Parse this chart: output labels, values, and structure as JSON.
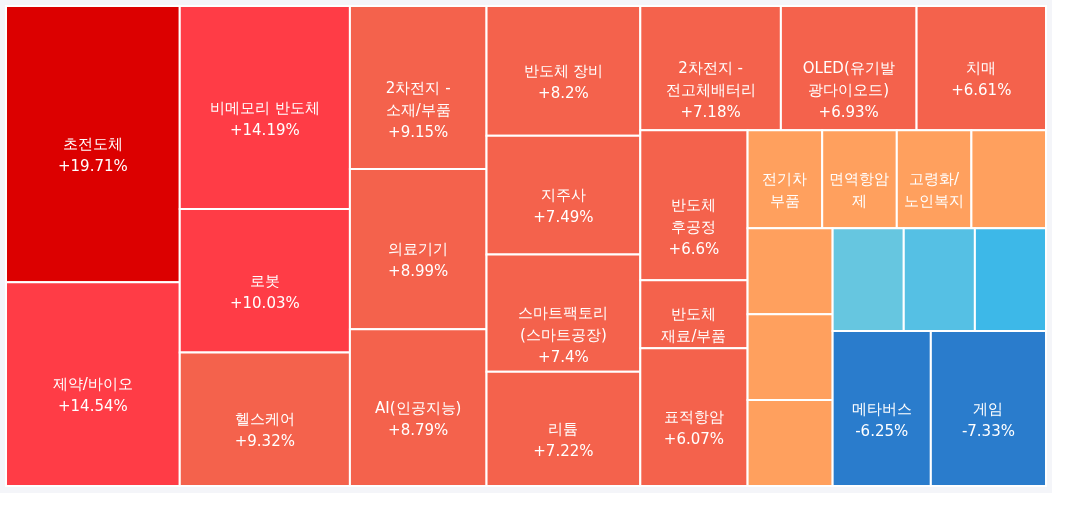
{
  "chart_data": {
    "type": "other",
    "categories": [
      "초전도체",
      "제약/바이오",
      "비메모리 반도체",
      "로봇",
      "헬스케어",
      "2차전지 - 소재/부품",
      "의료기기",
      "AI(인공지능)",
      "반도체 장비",
      "지주사",
      "스마트팩토리 (스마트공장)",
      "리튬",
      "2차전지 - 전고체배터리",
      "OLED(유기발광다이오드)",
      "치매",
      "반도체 후공정",
      "반도체 재료/부품",
      "표적항암",
      "전기차 부품",
      "면역항암제",
      "고령화/노인복지",
      null,
      null,
      null,
      null,
      null,
      null,
      null,
      "메타버스",
      "게임"
    ],
    "values": [
      19.71,
      14.54,
      14.19,
      10.03,
      9.32,
      9.15,
      8.99,
      8.79,
      8.2,
      7.49,
      7.4,
      7.22,
      7.18,
      6.93,
      6.61,
      6.6,
      null,
      6.07,
      null,
      null,
      null,
      null,
      null,
      null,
      null,
      null,
      null,
      null,
      -6.25,
      -7.33
    ],
    "value_labels": [
      "+19.71%",
      "+14.54%",
      "+14.19%",
      "+10.03%",
      "+9.32%",
      "+9.15%",
      "+8.99%",
      "+8.79%",
      "+8.2%",
      "+7.49%",
      "+7.4%",
      "+7.22%",
      "+7.18%",
      "+6.93%",
      "+6.61%",
      "+6.6%",
      null,
      "+6.07%",
      null,
      null,
      null,
      null,
      null,
      null,
      null,
      null,
      null,
      null,
      "-6.25%",
      "-7.33%"
    ],
    "colors": [
      "#dc0000",
      "#ff3c46",
      "#ff3c46",
      "#ff3c46",
      "#f4624c",
      "#f4624c",
      "#f4624c",
      "#f4624c",
      "#f4624c",
      "#f4624c",
      "#f4624c",
      "#f4624c",
      "#f4624c",
      "#f4624c",
      "#f4624c",
      "#f4624c",
      "#f4624c",
      "#f4624c",
      "#ffa05e",
      "#ffa05e",
      "#ffa05e",
      "#ffa05e",
      "#ffa05e",
      "#ffa05e",
      "#ffa05e",
      "#66c6e0",
      "#55c0e4",
      "#3db8e8",
      "#2a7ccc",
      "#2a7ccc"
    ]
  }
}
